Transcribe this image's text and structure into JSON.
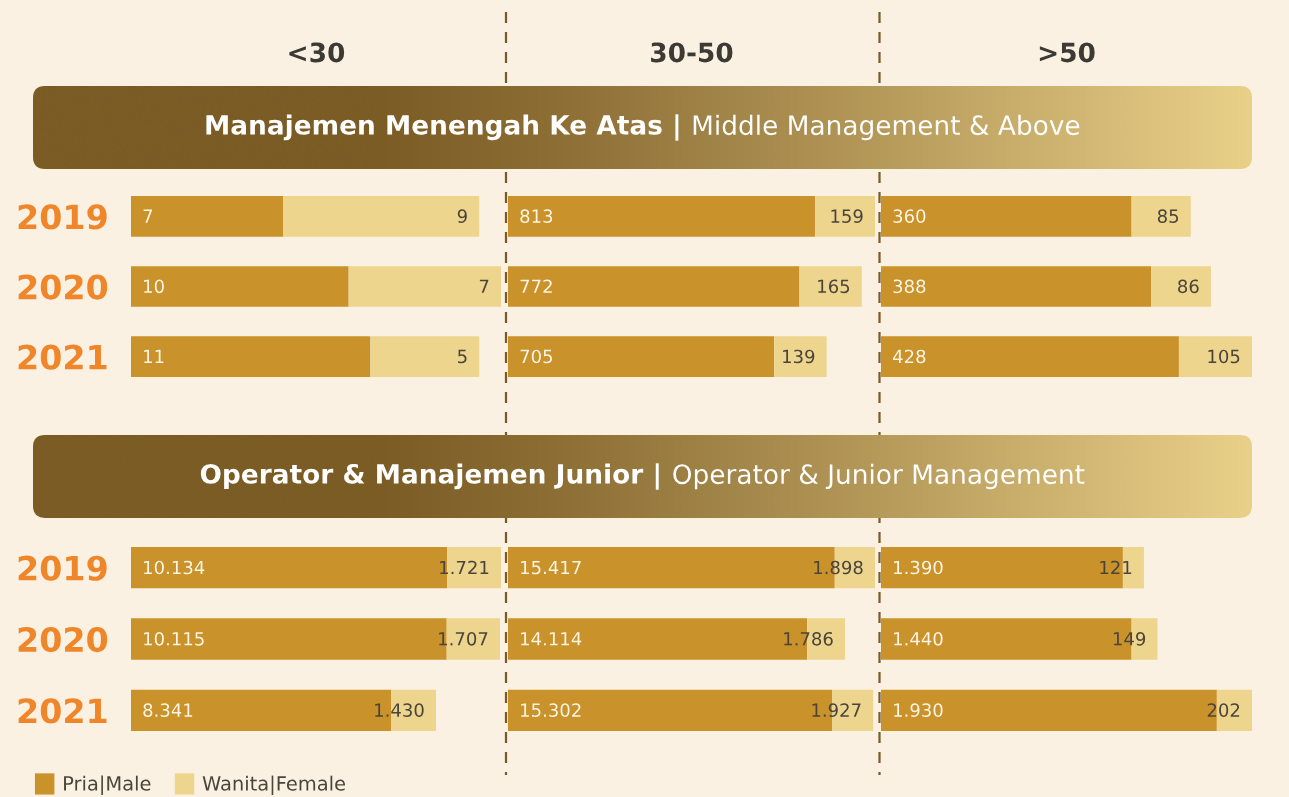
{
  "chart_data": [
    {
      "type": "bar",
      "orientation": "horizontal",
      "stacked": true,
      "title": "<30",
      "subtitle": "Manajemen Menengah Ke Atas | Middle Management & Above",
      "categories": [
        "2019",
        "2020",
        "2021"
      ],
      "tick_labels": "y",
      "series": [
        {
          "color": "#c9922b",
          "values": [
            7,
            10,
            11
          ],
          "value_labels": [
            "7",
            "10",
            "11"
          ]
        },
        {
          "color": "#edd58e",
          "values": [
            9,
            7,
            5
          ],
          "value_labels": [
            "9",
            "7",
            "5"
          ]
        }
      ]
    },
    {
      "type": "bar",
      "orientation": "horizontal",
      "stacked": true,
      "title": "30-50",
      "categories": [
        "2019",
        "2020",
        "2021"
      ],
      "tick_labels": false,
      "series": [
        {
          "color": "#c9922b",
          "values": [
            813,
            772,
            705
          ],
          "value_labels": [
            "813",
            "772",
            "705"
          ]
        },
        {
          "color": "#edd58e",
          "values": [
            159,
            165,
            139
          ],
          "value_labels": [
            "159",
            "165",
            "139"
          ]
        }
      ]
    },
    {
      "type": "bar",
      "orientation": "horizontal",
      "stacked": true,
      "title": ">50",
      "categories": [
        "2019",
        "2020",
        "2021"
      ],
      "tick_labels": false,
      "series": [
        {
          "color": "#c9922b",
          "values": [
            360,
            388,
            428
          ],
          "value_labels": [
            "360",
            "388",
            "428"
          ]
        },
        {
          "color": "#edd58e",
          "values": [
            85,
            86,
            105
          ],
          "value_labels": [
            "85",
            "86",
            "105"
          ]
        }
      ]
    },
    {
      "type": "bar",
      "orientation": "horizontal",
      "stacked": true,
      "subtitle": "Operator & Manajemen Junior | Operator & Junior Management",
      "categories": [
        "2019",
        "2020",
        "2021"
      ],
      "tick_labels": "y",
      "legend": "bottom left",
      "series": [
        {
          "name": "Pria|Male",
          "color": "#c9922b",
          "values": [
            10134,
            10115,
            8341
          ],
          "value_labels": [
            "10.134",
            "10.115",
            "8.341"
          ]
        },
        {
          "name": "Wanita|Female",
          "color": "#edd58e",
          "values": [
            1721,
            1707,
            1430
          ],
          "value_labels": [
            "1.721",
            "1.707",
            "1.430"
          ]
        }
      ]
    },
    {
      "type": "bar",
      "orientation": "horizontal",
      "stacked": true,
      "categories": [
        "2019",
        "2020",
        "2021"
      ],
      "tick_labels": false,
      "series": [
        {
          "color": "#c9922b",
          "values": [
            15417,
            14114,
            15302
          ],
          "value_labels": [
            "15.417",
            "14.114",
            "15.302"
          ]
        },
        {
          "color": "#edd58e",
          "values": [
            1898,
            1786,
            1927
          ],
          "value_labels": [
            "1.898",
            "1.786",
            "1.927"
          ]
        }
      ]
    },
    {
      "type": "bar",
      "orientation": "horizontal",
      "stacked": true,
      "categories": [
        "2019",
        "2020",
        "2021"
      ],
      "tick_labels": false,
      "series": [
        {
          "color": "#c9922b",
          "values": [
            1390,
            1440,
            1930
          ],
          "value_labels": [
            "1.390",
            "1.440",
            "1.930"
          ]
        },
        {
          "color": "#edd58e",
          "values": [
            121,
            149,
            202
          ],
          "value_labels": [
            "121",
            "149",
            "202"
          ]
        }
      ]
    }
  ]
}
